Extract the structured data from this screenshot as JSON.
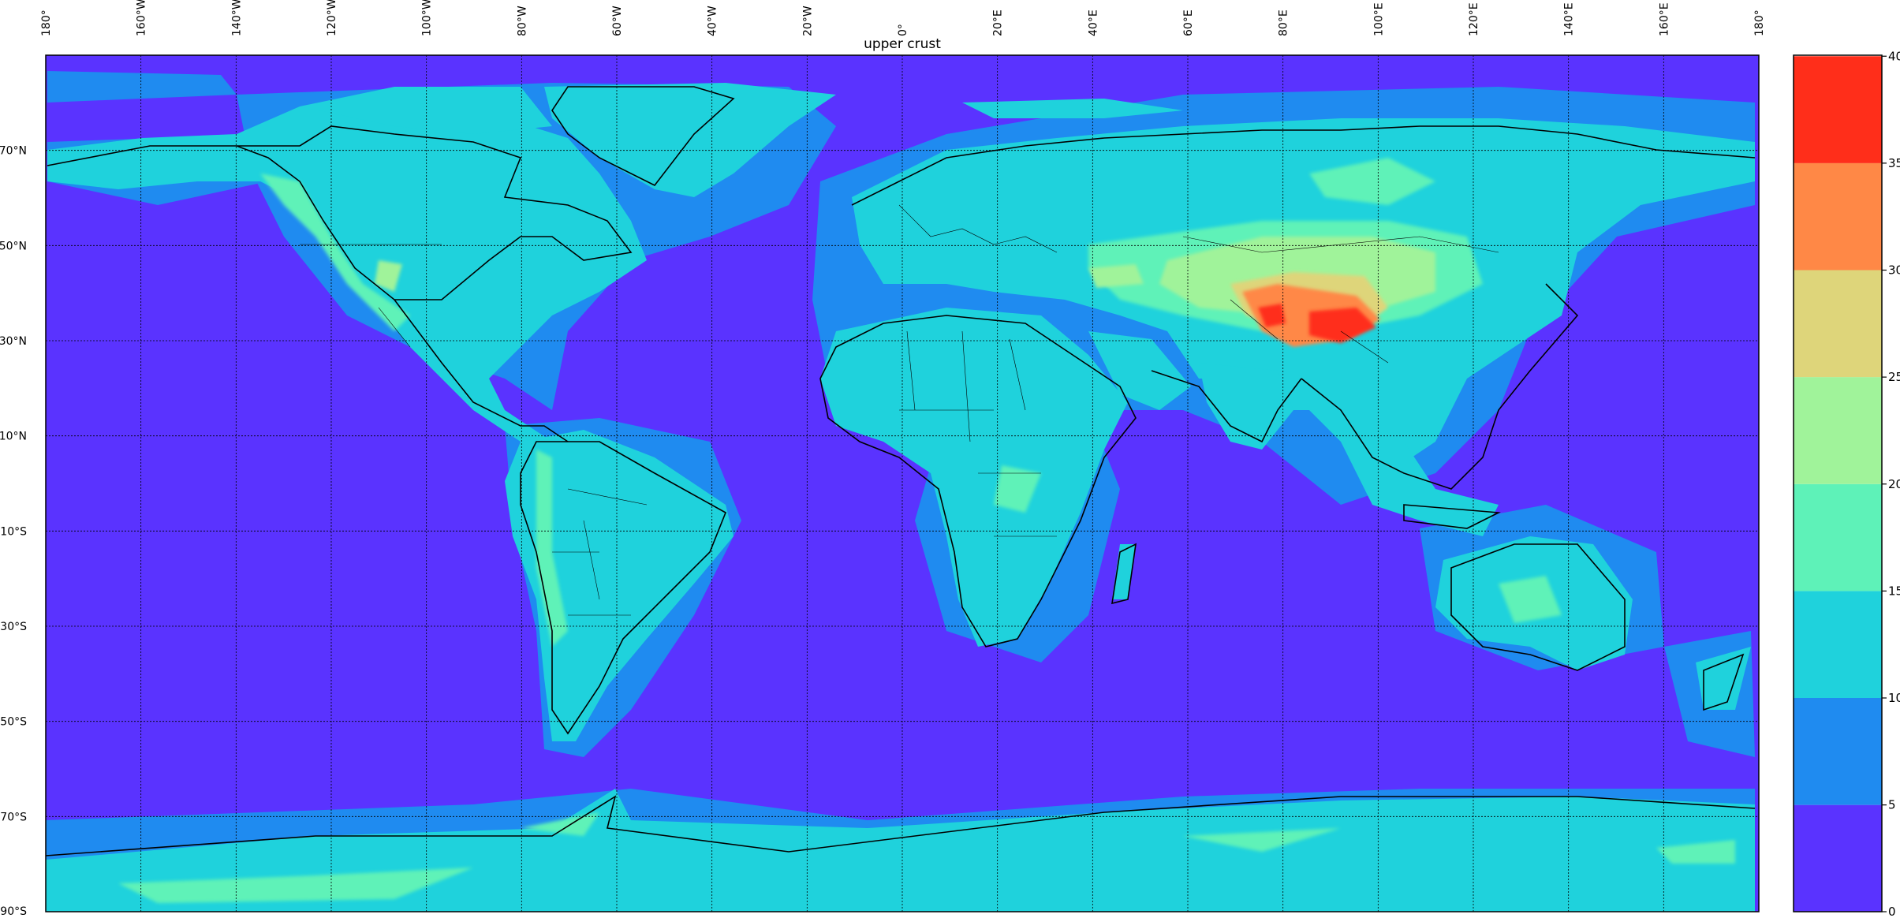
{
  "title": "upper crust",
  "lon_tick_labels": [
    "180°",
    "160°W",
    "140°W",
    "120°W",
    "100°W",
    "80°W",
    "60°W",
    "40°W",
    "20°W",
    "0°",
    "20°E",
    "40°E",
    "60°E",
    "80°E",
    "100°E",
    "120°E",
    "140°E",
    "160°E",
    "180°"
  ],
  "lat_tick_labels": [
    "70°N",
    "50°N",
    "30°N",
    "10°N",
    "10°S",
    "30°S",
    "50°S",
    "70°S",
    "90°S"
  ],
  "colorbar": {
    "ticks": [
      "0",
      "5",
      "10",
      "15",
      "20",
      "25",
      "30",
      "35",
      "40"
    ],
    "levels": [
      0,
      5,
      10,
      15,
      20,
      25,
      30,
      35,
      40
    ],
    "colors": [
      "#5a33ff",
      "#1f8bf0",
      "#1fd2dc",
      "#5ef2b8",
      "#a0f39a",
      "#ded57a",
      "#ff8846",
      "#ff2e1a"
    ]
  },
  "map": {
    "projection": "equirectangular",
    "lon_range": [
      -180,
      180
    ],
    "lat_range": [
      -90,
      90
    ],
    "ocean_color": "#5a33ff",
    "gridlines": "dotted",
    "coastlines": true,
    "country_borders": true
  }
}
